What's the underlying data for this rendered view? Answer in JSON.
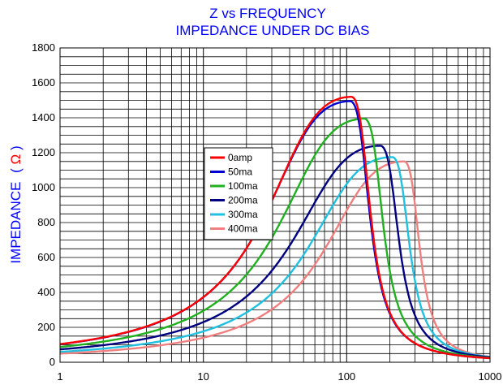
{
  "chart_data": {
    "type": "line",
    "title": "Z vs FREQUENCY",
    "subtitle": "IMPEDANCE UNDER DC BIAS",
    "xlabel": "",
    "ylabel": "IMPEDANCE",
    "ylabel_unit": "Ω",
    "xscale": "log",
    "xlim": [
      1,
      1000
    ],
    "ylim": [
      0,
      1800
    ],
    "xticks": [
      "1",
      "10",
      "100",
      "1000"
    ],
    "yticks": [
      "0",
      "200",
      "400",
      "600",
      "800",
      "1000",
      "1200",
      "1400",
      "1600",
      "1800"
    ],
    "grid": true,
    "legend_position": "center-left",
    "series": [
      {
        "name": "0amp",
        "color": "#ff0000",
        "peak_x": 108,
        "peak_y": 1520,
        "width": 0.86,
        "end_y": 165
      },
      {
        "name": "50ma",
        "color": "#0000d0",
        "peak_x": 106,
        "peak_y": 1495,
        "width": 0.86,
        "end_y": 165
      },
      {
        "name": "100ma",
        "color": "#20b020",
        "peak_x": 133,
        "peak_y": 1395,
        "width": 0.86,
        "end_y": 165
      },
      {
        "name": "200ma",
        "color": "#000080",
        "peak_x": 172,
        "peak_y": 1240,
        "width": 0.88,
        "end_y": 165
      },
      {
        "name": "300ma",
        "color": "#20c0e0",
        "peak_x": 208,
        "peak_y": 1175,
        "width": 0.84,
        "end_y": 165
      },
      {
        "name": "400ma",
        "color": "#f08080",
        "peak_x": 252,
        "peak_y": 1150,
        "width": 0.8,
        "end_y": 165
      }
    ]
  }
}
